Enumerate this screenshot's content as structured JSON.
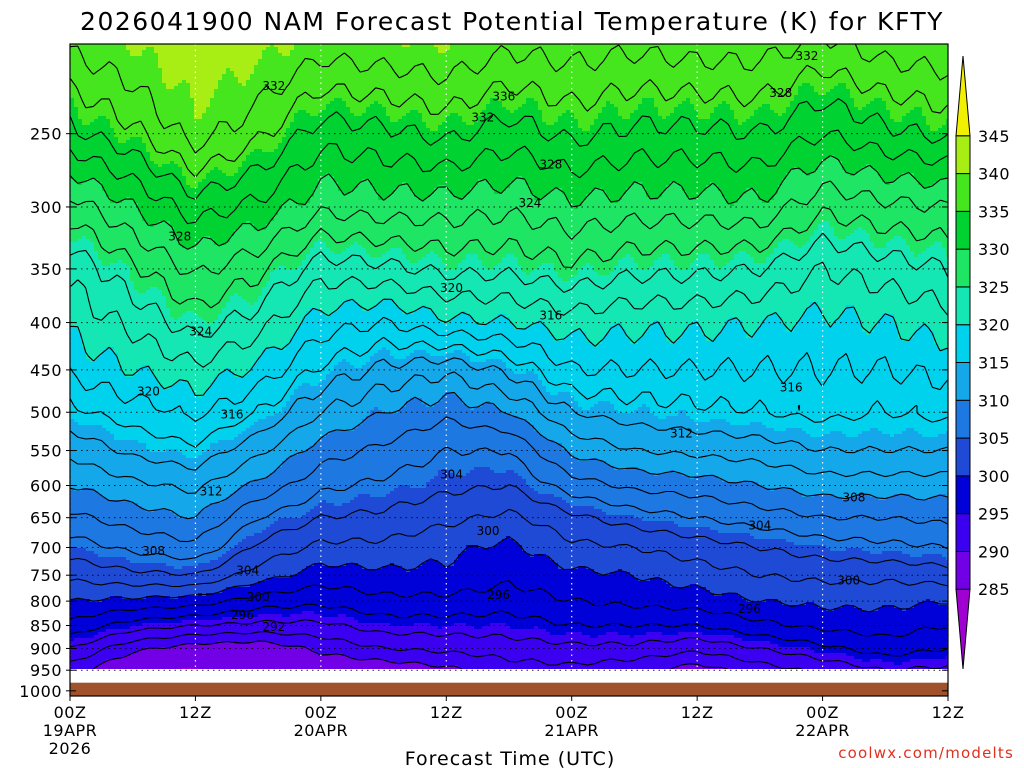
{
  "chart_data": {
    "type": "heatmap",
    "title": "2026041900 NAM Forecast Potential Temperature (K) for KFTY",
    "xlabel": "Forecast Time (UTC)",
    "ylabel": "",
    "x_ticks": [
      {
        "label": "00Z",
        "sub": [
          "19APR",
          "2026"
        ],
        "hour": 0
      },
      {
        "label": "12Z",
        "sub": [],
        "hour": 12
      },
      {
        "label": "00Z",
        "sub": [
          "20APR"
        ],
        "hour": 24
      },
      {
        "label": "12Z",
        "sub": [],
        "hour": 36
      },
      {
        "label": "00Z",
        "sub": [
          "21APR"
        ],
        "hour": 48
      },
      {
        "label": "12Z",
        "sub": [],
        "hour": 60
      },
      {
        "label": "00Z",
        "sub": [
          "22APR"
        ],
        "hour": 72
      },
      {
        "label": "12Z",
        "sub": [],
        "hour": 84
      }
    ],
    "xlim_hours": [
      0,
      84
    ],
    "y_scale": "log",
    "y_ticks": [
      250,
      300,
      350,
      400,
      450,
      500,
      550,
      600,
      650,
      700,
      750,
      800,
      850,
      900,
      950,
      1000
    ],
    "ylim": [
      200,
      1013
    ],
    "surface_pressure": 980,
    "colorbar": {
      "ticks": [
        285,
        290,
        295,
        300,
        305,
        310,
        315,
        320,
        325,
        330,
        335,
        340,
        345
      ],
      "colors": [
        "#a000d2",
        "#7200e6",
        "#3c00f0",
        "#0000d8",
        "#1e4ad6",
        "#1e78e2",
        "#14a8ea",
        "#00d2ee",
        "#14e6b4",
        "#1ee664",
        "#00d232",
        "#46e61e",
        "#a8ee14",
        "#f0f000"
      ],
      "min": 280,
      "max": 350
    },
    "theta_levels_K": [
      290,
      292,
      294,
      296,
      298,
      300,
      302,
      304,
      306,
      308,
      310,
      312,
      314,
      316,
      318,
      320,
      322,
      324,
      326,
      328,
      330,
      332,
      334,
      336,
      338
    ],
    "theta_profile": {
      "hours": [
        0,
        6,
        12,
        18,
        24,
        30,
        36,
        42,
        48,
        54,
        60,
        66,
        72,
        78,
        84
      ],
      "pressure_hPa": [
        200,
        250,
        300,
        350,
        400,
        450,
        500,
        550,
        600,
        650,
        700,
        750,
        800,
        850,
        900,
        950,
        1000
      ],
      "theta_K": [
        [
          338.5,
          333.5,
          327.0,
          322.5,
          320.5,
          318.5,
          315.5,
          312.5,
          310.0,
          307.5,
          305.0,
          302.5,
          300.0,
          297.5,
          294.0,
          291.0,
          290.5
        ],
        [
          340.0,
          335.5,
          330.0,
          325.5,
          322.5,
          320.0,
          317.0,
          314.5,
          311.5,
          309.0,
          306.5,
          303.5,
          299.5,
          295.0,
          290.5,
          287.5,
          287.0
        ],
        [
          342.5,
          339.0,
          333.0,
          328.5,
          325.0,
          321.5,
          318.5,
          315.5,
          312.5,
          310.0,
          307.5,
          304.0,
          299.0,
          294.0,
          289.0,
          284.5,
          284.0
        ],
        [
          341.0,
          336.5,
          331.5,
          326.5,
          323.0,
          319.5,
          316.0,
          312.5,
          309.5,
          306.0,
          303.5,
          301.0,
          297.0,
          293.5,
          288.5,
          287.0,
          289.0
        ],
        [
          339.0,
          333.0,
          328.5,
          323.0,
          319.0,
          315.5,
          312.0,
          309.0,
          306.5,
          304.0,
          301.5,
          299.0,
          296.5,
          293.5,
          290.5,
          288.0,
          288.5
        ],
        [
          339.5,
          333.5,
          329.0,
          323.5,
          318.0,
          313.5,
          310.0,
          307.5,
          305.5,
          303.5,
          301.5,
          299.5,
          297.5,
          295.0,
          292.0,
          288.5,
          288.0
        ],
        [
          340.0,
          334.5,
          329.0,
          324.5,
          319.5,
          312.5,
          308.5,
          306.0,
          304.5,
          302.5,
          300.5,
          299.5,
          297.5,
          295.0,
          292.5,
          289.5,
          289.0
        ],
        [
          338.5,
          333.0,
          328.5,
          324.5,
          320.0,
          314.5,
          310.0,
          306.0,
          304.0,
          301.5,
          299.5,
          298.5,
          297.0,
          295.0,
          293.0,
          291.0,
          290.5
        ],
        [
          339.0,
          334.5,
          329.5,
          325.5,
          321.0,
          318.0,
          314.0,
          310.5,
          307.0,
          303.5,
          301.5,
          299.5,
          298.0,
          296.0,
          293.5,
          291.5,
          291.5
        ],
        [
          338.5,
          333.5,
          329.0,
          324.5,
          320.5,
          318.0,
          315.0,
          312.0,
          308.5,
          305.0,
          302.0,
          300.0,
          298.5,
          296.0,
          293.5,
          290.5,
          290.0
        ],
        [
          339.0,
          333.5,
          329.0,
          324.5,
          320.5,
          318.0,
          315.5,
          312.5,
          309.0,
          306.0,
          303.0,
          301.0,
          299.0,
          296.0,
          292.5,
          289.0,
          288.5
        ],
        [
          339.0,
          334.0,
          329.5,
          324.0,
          320.0,
          318.0,
          316.0,
          313.0,
          310.0,
          307.0,
          304.0,
          302.0,
          300.0,
          297.5,
          294.0,
          291.0,
          290.5
        ],
        [
          337.5,
          332.0,
          326.5,
          322.0,
          319.5,
          318.0,
          316.5,
          314.0,
          311.0,
          308.0,
          305.0,
          302.5,
          300.5,
          298.5,
          295.5,
          292.5,
          292.0
        ],
        [
          339.0,
          333.5,
          327.5,
          323.0,
          320.0,
          318.0,
          316.0,
          314.0,
          311.0,
          308.0,
          305.5,
          302.5,
          300.5,
          299.0,
          297.0,
          294.0,
          293.5
        ],
        [
          339.5,
          334.5,
          328.0,
          324.0,
          321.0,
          318.5,
          316.5,
          314.0,
          311.0,
          308.5,
          306.0,
          303.0,
          300.0,
          298.0,
          296.0,
          293.5,
          293.0
        ]
      ]
    },
    "contour_labels": [
      {
        "text": "332",
        "hour": 19.5,
        "p": 222
      },
      {
        "text": "336",
        "hour": 41.5,
        "p": 228
      },
      {
        "text": "332",
        "hour": 39.5,
        "p": 240
      },
      {
        "text": "332",
        "hour": 70.5,
        "p": 206
      },
      {
        "text": "328",
        "hour": 68.0,
        "p": 226
      },
      {
        "text": "328",
        "hour": 46.0,
        "p": 270
      },
      {
        "text": "328",
        "hour": 10.5,
        "p": 323
      },
      {
        "text": "324",
        "hour": 44.0,
        "p": 297
      },
      {
        "text": "324",
        "hour": 12.5,
        "p": 409
      },
      {
        "text": "320",
        "hour": 36.5,
        "p": 367
      },
      {
        "text": "316",
        "hour": 46.0,
        "p": 393
      },
      {
        "text": "320",
        "hour": 7.5,
        "p": 475
      },
      {
        "text": "316",
        "hour": 15.5,
        "p": 503
      },
      {
        "text": "316",
        "hour": 69.0,
        "p": 470
      },
      {
        "text": "312",
        "hour": 58.5,
        "p": 527
      },
      {
        "text": "304",
        "hour": 36.5,
        "p": 584
      },
      {
        "text": "312",
        "hour": 13.5,
        "p": 609
      },
      {
        "text": "308",
        "hour": 75.0,
        "p": 618
      },
      {
        "text": "304",
        "hour": 66.0,
        "p": 663
      },
      {
        "text": "308",
        "hour": 8.0,
        "p": 706
      },
      {
        "text": "304",
        "hour": 17.0,
        "p": 741
      },
      {
        "text": "300",
        "hour": 40.0,
        "p": 672
      },
      {
        "text": "300",
        "hour": 74.5,
        "p": 760
      },
      {
        "text": "296",
        "hour": 41.0,
        "p": 788
      },
      {
        "text": "296",
        "hour": 65.0,
        "p": 816
      },
      {
        "text": "300",
        "hour": 18.0,
        "p": 792
      },
      {
        "text": "296",
        "hour": 16.5,
        "p": 828
      },
      {
        "text": "292",
        "hour": 19.5,
        "p": 853
      }
    ],
    "credit": "coolwx.com/modelts",
    "grid": "dotted"
  }
}
